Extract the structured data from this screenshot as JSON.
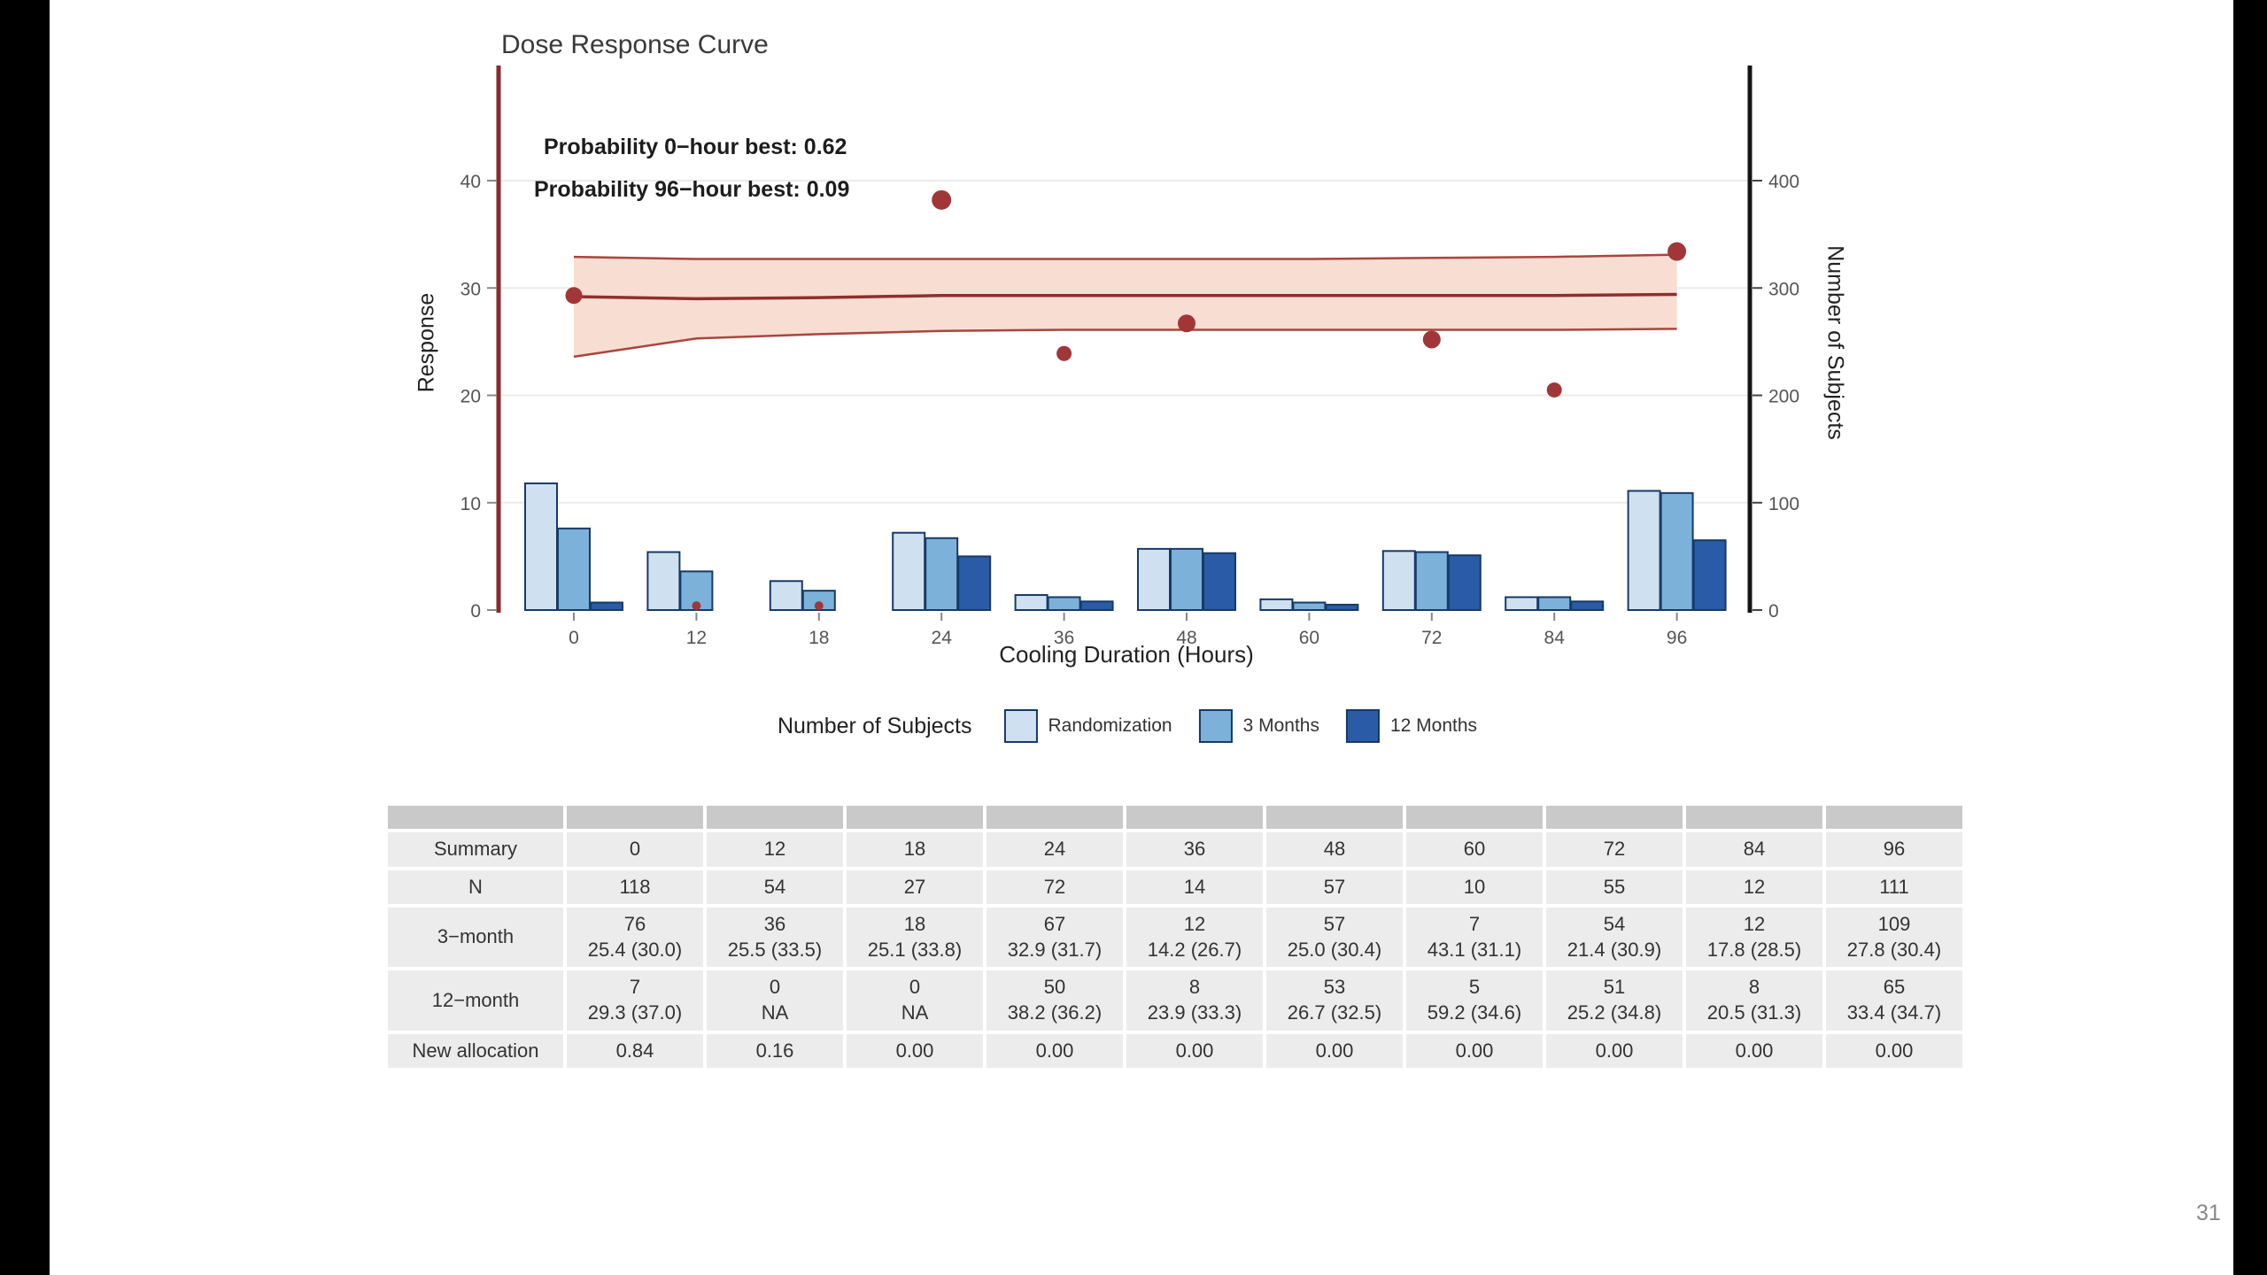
{
  "page": {
    "number": "31"
  },
  "chart": {
    "title": "Dose Response Curve",
    "annotations": [
      "Probability 0−hour best: 0.62",
      "Probability 96−hour best: 0.09"
    ],
    "xlabel": "Cooling Duration (Hours)",
    "ylabel_left": "Response",
    "ylabel_right": "Number of Subjects"
  },
  "chart_data": {
    "type": "line",
    "title": "Dose Response Curve",
    "xlabel": "Cooling Duration (Hours)",
    "ylabel_left": "Response",
    "ylabel_right": "Number of Subjects",
    "x_ticks": [
      0,
      12,
      18,
      24,
      36,
      48,
      60,
      72,
      84,
      96
    ],
    "y_left": {
      "ticks": [
        0,
        10,
        20,
        30,
        40
      ],
      "lim": [
        0,
        44
      ]
    },
    "y_right": {
      "ticks": [
        0,
        100,
        200,
        300,
        400
      ],
      "lim": [
        0,
        440
      ]
    },
    "fit_line": {
      "y": [
        29.2,
        29.0,
        29.1,
        29.3,
        29.3,
        29.3,
        29.3,
        29.3,
        29.3,
        29.4
      ]
    },
    "ribbon": {
      "upper": [
        32.9,
        32.7,
        32.7,
        32.7,
        32.7,
        32.7,
        32.7,
        32.8,
        32.9,
        33.1
      ],
      "lower": [
        23.6,
        25.3,
        25.7,
        26.0,
        26.1,
        26.1,
        26.1,
        26.1,
        26.1,
        26.2
      ]
    },
    "observed_points": [
      {
        "x": 0,
        "y": 29.3,
        "r": 9.5
      },
      {
        "x": 12,
        "y": 0.4,
        "r": 5
      },
      {
        "x": 18,
        "y": 0.4,
        "r": 5
      },
      {
        "x": 24,
        "y": 38.2,
        "r": 11
      },
      {
        "x": 36,
        "y": 23.9,
        "r": 8.5
      },
      {
        "x": 48,
        "y": 26.7,
        "r": 10
      },
      {
        "x": 72,
        "y": 25.2,
        "r": 10
      },
      {
        "x": 84,
        "y": 20.5,
        "r": 8.5
      },
      {
        "x": 96,
        "y": 33.4,
        "r": 10.5
      }
    ],
    "bars": {
      "axis": "right",
      "border_color": "#173a66",
      "series": [
        {
          "name": "Randomization",
          "color": "#cfe1f1",
          "values": [
            118,
            54,
            27,
            72,
            14,
            57,
            10,
            55,
            12,
            111
          ]
        },
        {
          "name": "3 Months",
          "color": "#7cb1d9",
          "values": [
            76,
            36,
            18,
            67,
            12,
            57,
            7,
            54,
            12,
            109
          ]
        },
        {
          "name": "12 Months",
          "color": "#2a5ba6",
          "values": [
            7,
            0,
            0,
            50,
            8,
            53,
            5,
            51,
            8,
            65
          ]
        }
      ]
    },
    "colors": {
      "line": "#8e2f2e",
      "ribbon_fill": "#f8ddd3",
      "ribbon_edge": "#a8453e",
      "point": "#a13639",
      "axis_left": "#8b2a2a",
      "axis_right": "#141414",
      "grid": "#ebebeb",
      "tick_text": "#555555"
    }
  },
  "legend": {
    "title": "Number of Subjects",
    "items": [
      {
        "label": "Randomization",
        "color": "#cfe1f1"
      },
      {
        "label": "3 Months",
        "color": "#7cb1d9"
      },
      {
        "label": "12 Months",
        "color": "#2a5ba6"
      }
    ]
  },
  "table": {
    "rows": [
      {
        "label": "Summary",
        "cells": [
          "0",
          "12",
          "18",
          "24",
          "36",
          "48",
          "60",
          "72",
          "84",
          "96"
        ]
      },
      {
        "label": "N",
        "cells": [
          "118",
          "54",
          "27",
          "72",
          "14",
          "57",
          "10",
          "55",
          "12",
          "111"
        ]
      },
      {
        "label": "3−month",
        "cells": [
          "76\n25.4 (30.0)",
          "36\n25.5 (33.5)",
          "18\n25.1 (33.8)",
          "67\n32.9 (31.7)",
          "12\n14.2 (26.7)",
          "57\n25.0 (30.4)",
          "7\n43.1 (31.1)",
          "54\n21.4 (30.9)",
          "12\n17.8 (28.5)",
          "109\n27.8 (30.4)"
        ]
      },
      {
        "label": "12−month",
        "cells": [
          "7\n29.3 (37.0)",
          "0\nNA",
          "0\nNA",
          "50\n38.2 (36.2)",
          "8\n23.9 (33.3)",
          "53\n26.7 (32.5)",
          "5\n59.2 (34.6)",
          "51\n25.2 (34.8)",
          "8\n20.5 (31.3)",
          "65\n33.4 (34.7)"
        ]
      },
      {
        "label": "New allocation",
        "cells": [
          "0.84",
          "0.16",
          "0.00",
          "0.00",
          "0.00",
          "0.00",
          "0.00",
          "0.00",
          "0.00",
          "0.00"
        ]
      }
    ]
  }
}
